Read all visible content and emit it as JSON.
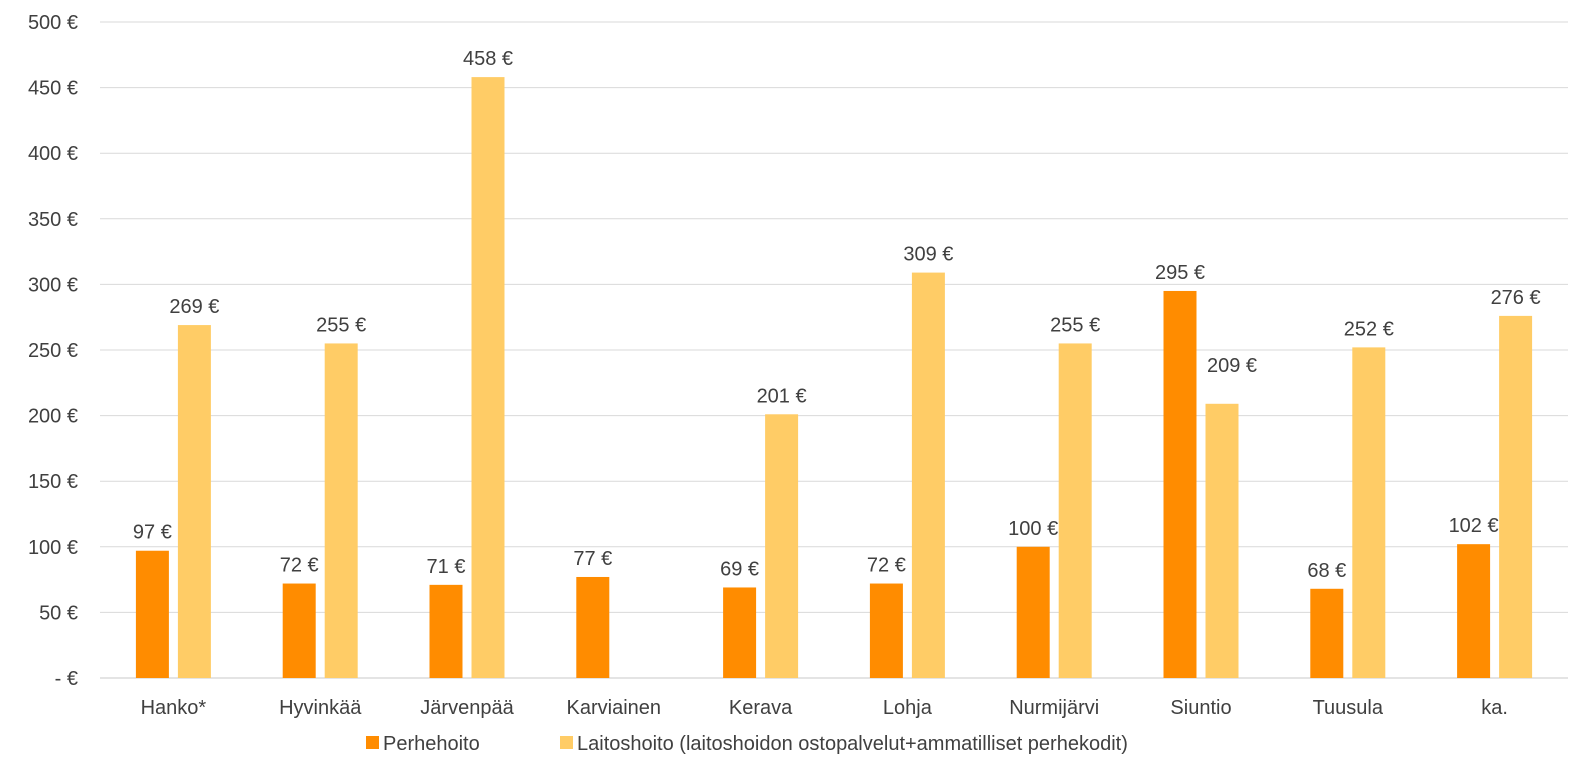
{
  "chart_data": {
    "type": "bar",
    "categories": [
      "Hanko*",
      "Hyvinkää",
      "Järvenpää",
      "Karviainen",
      "Kerava",
      "Lohja",
      "Nurmijärvi",
      "Siuntio",
      "Tuusula",
      "ka."
    ],
    "series": [
      {
        "name": "Perhehoito",
        "color": "#ff8c00",
        "values": [
          97,
          72,
          71,
          77,
          69,
          72,
          100,
          295,
          68,
          102
        ],
        "labels": [
          "97 €",
          "72 €",
          "71 €",
          "77 €",
          "69 €",
          "72 €",
          "100 €",
          "295 €",
          "68 €",
          "102 €"
        ]
      },
      {
        "name": "Laitoshoito (laitoshoidon ostopalvelut+ammatilliset perhekodit)",
        "color": "#ffcc66",
        "values": [
          269,
          255,
          458,
          null,
          201,
          309,
          255,
          209,
          252,
          276
        ],
        "labels": [
          "269 €",
          "255 €",
          "458 €",
          "",
          "201 €",
          "309 €",
          "255 €",
          "209 €",
          "252 €",
          "276 €"
        ]
      }
    ],
    "ylim": [
      0,
      500
    ],
    "yticks": [
      0,
      50,
      100,
      150,
      200,
      250,
      300,
      350,
      400,
      450,
      500
    ],
    "ytick_labels": [
      "-   €",
      "50 €",
      "100 €",
      "150 €",
      "200 €",
      "250 €",
      "300 €",
      "350 €",
      "400 €",
      "450 €",
      "500 €"
    ],
    "grid": true,
    "legend_position": "bottom"
  }
}
